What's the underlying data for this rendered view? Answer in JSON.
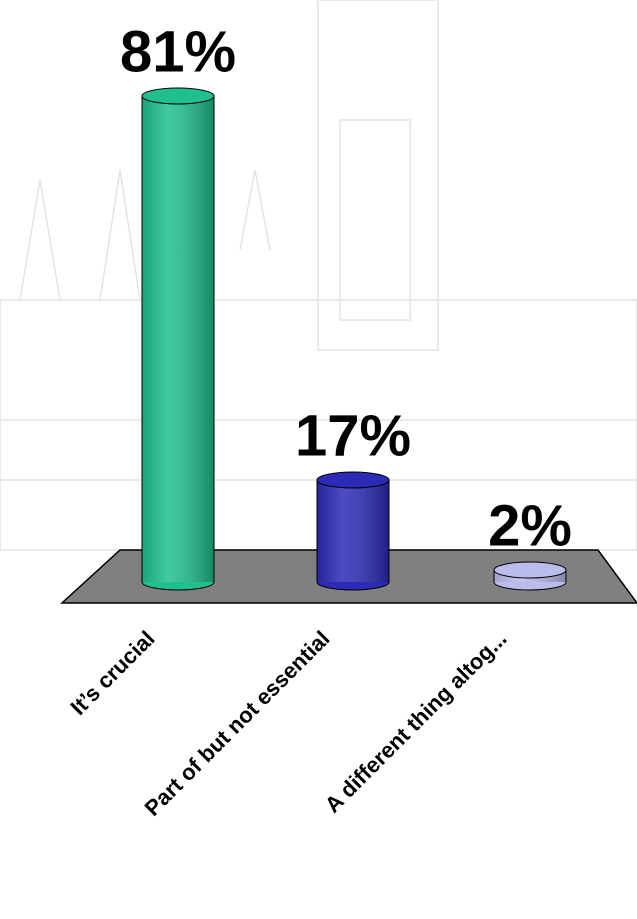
{
  "chart_data": {
    "type": "bar3d",
    "categories": [
      "It’s crucial",
      "Part of but not essential",
      "A different thing altog..."
    ],
    "values": [
      81,
      17,
      2
    ],
    "value_labels": [
      "81%",
      "17%",
      "2%"
    ],
    "colors": [
      "#1fc08e",
      "#2b2bb8",
      "#bcbcec"
    ]
  }
}
